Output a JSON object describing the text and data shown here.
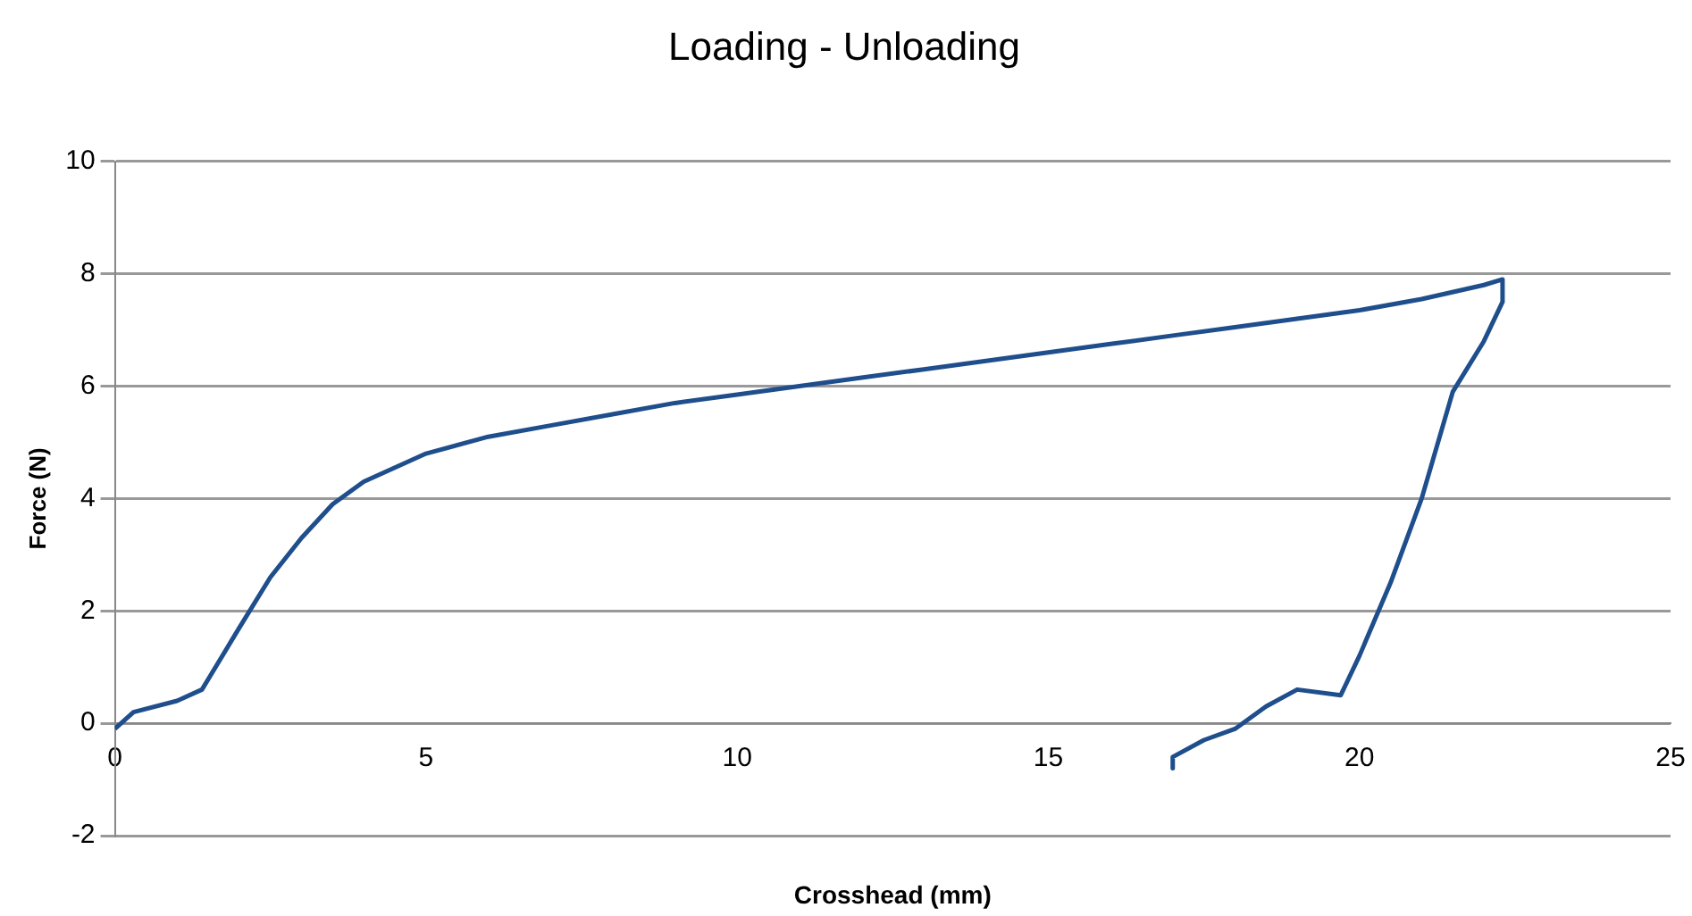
{
  "chart_data": {
    "type": "line",
    "title": "Loading - Unloading",
    "xlabel": "Crosshead (mm)",
    "ylabel": "Force (N)",
    "series": [
      {
        "color": "#1f4e8c",
        "x": [
          0,
          0.3,
          1,
          1.4,
          2,
          2.5,
          3,
          3.5,
          4,
          5,
          6,
          7,
          8,
          9,
          10,
          11,
          12,
          13,
          14,
          15,
          16,
          17,
          18,
          19,
          20,
          21,
          22,
          22.3,
          22.3,
          22,
          21.5,
          21,
          20.5,
          20,
          19.7,
          19,
          18.5,
          18,
          17.5,
          17,
          17
        ],
        "values": [
          -0.1,
          0.2,
          0.4,
          0.6,
          1.7,
          2.6,
          3.3,
          3.9,
          4.3,
          4.8,
          5.1,
          5.3,
          5.5,
          5.7,
          5.85,
          6,
          6.15,
          6.3,
          6.45,
          6.6,
          6.75,
          6.9,
          7.05,
          7.2,
          7.35,
          7.55,
          7.8,
          7.9,
          7.5,
          6.8,
          5.9,
          4,
          2.5,
          1.2,
          0.5,
          0.6,
          0.3,
          -0.1,
          -0.3,
          -0.6,
          -0.8
        ]
      }
    ],
    "xlim": [
      0,
      25
    ],
    "xticks": [
      0,
      5,
      10,
      15,
      20,
      25
    ],
    "ylim": [
      -2,
      10
    ],
    "yticks": [
      -2,
      0,
      2,
      4,
      6,
      8,
      10
    ],
    "grid": "y",
    "legend": false,
    "marker": "none",
    "line_style": "solid"
  }
}
